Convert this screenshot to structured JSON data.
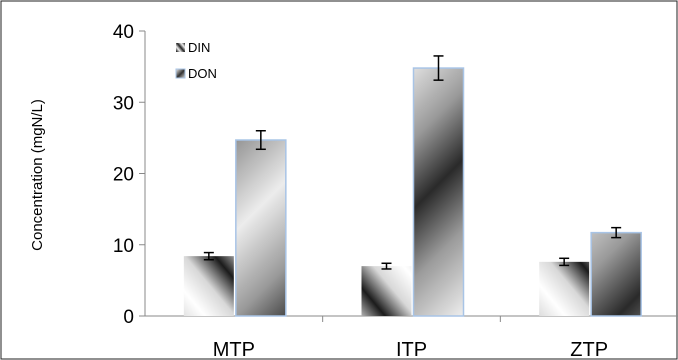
{
  "chart_data": {
    "type": "bar",
    "categories": [
      "MTP",
      "ITP",
      "ZTP"
    ],
    "series": [
      {
        "name": "DIN",
        "values": [
          8.4,
          7.0,
          7.6
        ],
        "errors": [
          0.5,
          0.4,
          0.5
        ],
        "pattern": "wide-stripe"
      },
      {
        "name": "DON",
        "values": [
          24.7,
          34.8,
          11.7
        ],
        "errors": [
          1.3,
          1.7,
          0.7
        ],
        "pattern": "diagonal-gradient"
      }
    ],
    "ylabel": "Concentration (mgN/L)",
    "xlabel": "",
    "ylim": [
      0,
      40
    ],
    "yticks": [
      0,
      10,
      20,
      30,
      40
    ],
    "grid": false,
    "legend": "top-left",
    "colors": {
      "axis": "#888888",
      "don_border": "#a8c4e6",
      "chart_border": "#222222"
    }
  }
}
